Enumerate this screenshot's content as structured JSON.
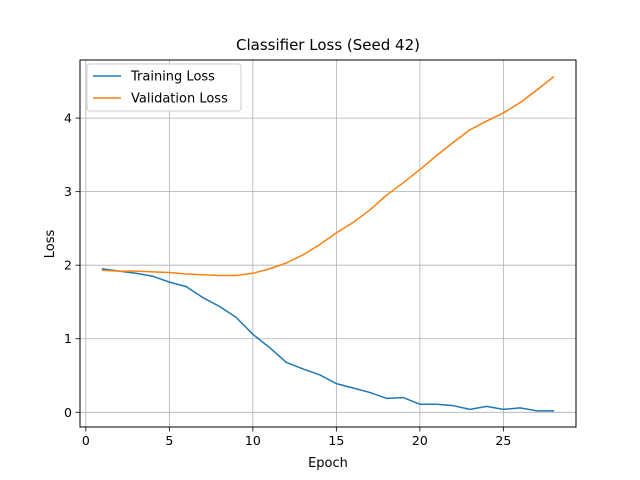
{
  "chart_data": {
    "type": "line",
    "title": "Classifier Loss (Seed 42)",
    "xlabel": "Epoch",
    "ylabel": "Loss",
    "xlim": [
      -0.35,
      29.35
    ],
    "ylim": [
      -0.2,
      4.79
    ],
    "xticks": [
      0,
      5,
      10,
      15,
      20,
      25
    ],
    "yticks": [
      0,
      1,
      2,
      3,
      4
    ],
    "grid": true,
    "legend_position": "top-left",
    "x": [
      1,
      2,
      3,
      4,
      5,
      6,
      7,
      8,
      9,
      10,
      11,
      12,
      13,
      14,
      15,
      16,
      17,
      18,
      19,
      20,
      21,
      22,
      23,
      24,
      25,
      26,
      27,
      28
    ],
    "series": [
      {
        "name": "Training Loss",
        "color": "#1f77b4",
        "values": [
          1.95,
          1.92,
          1.89,
          1.85,
          1.77,
          1.71,
          1.56,
          1.44,
          1.29,
          1.06,
          0.88,
          0.68,
          0.59,
          0.51,
          0.39,
          0.33,
          0.27,
          0.19,
          0.2,
          0.11,
          0.11,
          0.09,
          0.04,
          0.08,
          0.04,
          0.06,
          0.02,
          0.02
        ]
      },
      {
        "name": "Validation Loss",
        "color": "#ff7f0e",
        "values": [
          1.93,
          1.92,
          1.92,
          1.91,
          1.9,
          1.88,
          1.87,
          1.86,
          1.86,
          1.89,
          1.95,
          2.03,
          2.14,
          2.28,
          2.44,
          2.58,
          2.75,
          2.95,
          3.12,
          3.3,
          3.49,
          3.67,
          3.84,
          3.96,
          4.07,
          4.21,
          4.38,
          4.56
        ]
      }
    ]
  }
}
